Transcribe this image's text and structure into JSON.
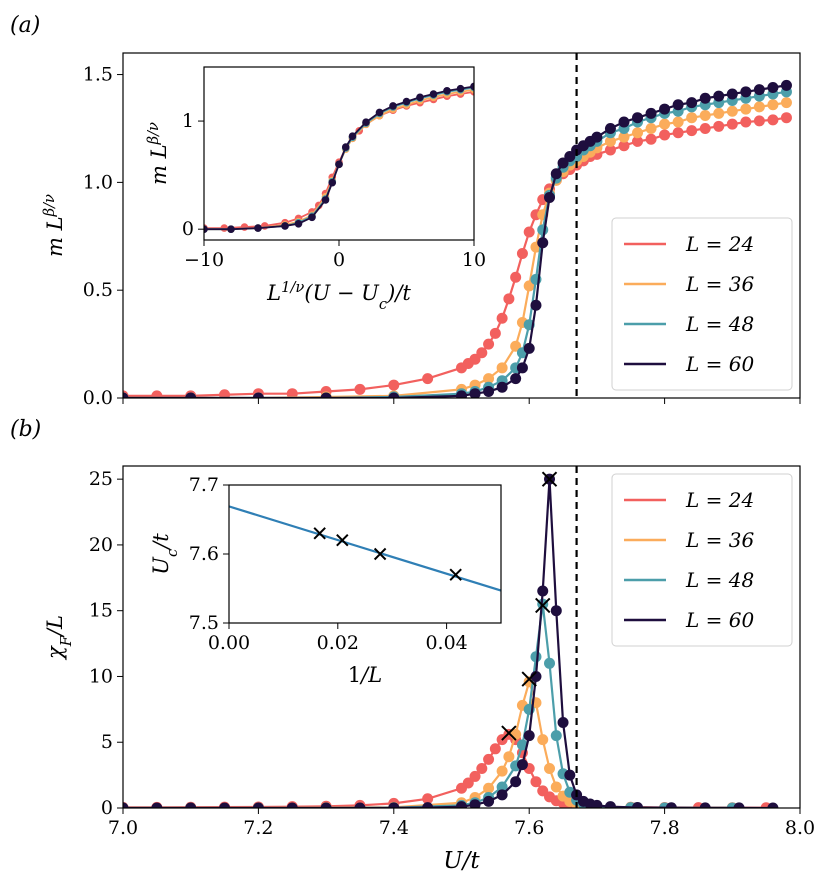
{
  "colors": {
    "L24": "#f2605e",
    "L36": "#fbac5b",
    "L48": "#4c9eaa",
    "L60": "#1e0e3e",
    "fit_line": "#2f7fb5",
    "critical_line": "#000000"
  },
  "chart_data": [
    {
      "id": "panel_a_main",
      "type": "line",
      "panel_label": "(a)",
      "xlabel": "",
      "ylabel": "m L^{β/ν}",
      "xlim": [
        7.0,
        8.0
      ],
      "ylim": [
        0.0,
        1.6
      ],
      "x_ticks": [
        7.0,
        7.2,
        7.4,
        7.6,
        7.8,
        8.0
      ],
      "y_ticks": [
        0.0,
        0.5,
        1.0,
        1.5
      ],
      "y_tick_labels": [
        "0.0",
        "0.5",
        "1.0",
        "1.5"
      ],
      "critical_x": 7.67,
      "legend_position": "lower-right",
      "series": [
        {
          "name": "L = 24",
          "color_key": "L24",
          "x": [
            7.0,
            7.05,
            7.1,
            7.15,
            7.2,
            7.25,
            7.3,
            7.35,
            7.4,
            7.45,
            7.5,
            7.51,
            7.52,
            7.53,
            7.54,
            7.55,
            7.56,
            7.57,
            7.58,
            7.59,
            7.6,
            7.61,
            7.62,
            7.63,
            7.64,
            7.65,
            7.66,
            7.67,
            7.68,
            7.69,
            7.7,
            7.72,
            7.74,
            7.76,
            7.78,
            7.8,
            7.82,
            7.84,
            7.86,
            7.88,
            7.9,
            7.92,
            7.94,
            7.96,
            7.98
          ],
          "y": [
            0.01,
            0.01,
            0.01,
            0.015,
            0.02,
            0.02,
            0.03,
            0.04,
            0.06,
            0.09,
            0.14,
            0.16,
            0.18,
            0.21,
            0.25,
            0.3,
            0.37,
            0.46,
            0.56,
            0.67,
            0.77,
            0.85,
            0.92,
            0.97,
            1.01,
            1.04,
            1.06,
            1.08,
            1.1,
            1.12,
            1.13,
            1.15,
            1.17,
            1.19,
            1.2,
            1.22,
            1.23,
            1.24,
            1.25,
            1.26,
            1.27,
            1.28,
            1.285,
            1.29,
            1.3
          ]
        },
        {
          "name": "L = 36",
          "color_key": "L36",
          "x": [
            7.0,
            7.1,
            7.2,
            7.3,
            7.4,
            7.5,
            7.52,
            7.54,
            7.56,
            7.58,
            7.59,
            7.6,
            7.61,
            7.62,
            7.63,
            7.64,
            7.65,
            7.66,
            7.67,
            7.68,
            7.69,
            7.7,
            7.72,
            7.74,
            7.76,
            7.78,
            7.8,
            7.82,
            7.84,
            7.86,
            7.88,
            7.9,
            7.92,
            7.94,
            7.96,
            7.98
          ],
          "y": [
            0.0,
            0.0,
            0.0,
            0.005,
            0.01,
            0.04,
            0.06,
            0.09,
            0.14,
            0.24,
            0.35,
            0.52,
            0.7,
            0.85,
            0.95,
            1.01,
            1.05,
            1.08,
            1.1,
            1.12,
            1.14,
            1.16,
            1.19,
            1.21,
            1.23,
            1.25,
            1.27,
            1.28,
            1.3,
            1.31,
            1.32,
            1.33,
            1.34,
            1.35,
            1.36,
            1.37
          ]
        },
        {
          "name": "L = 48",
          "color_key": "L48",
          "x": [
            7.0,
            7.1,
            7.2,
            7.3,
            7.4,
            7.5,
            7.52,
            7.54,
            7.56,
            7.58,
            7.59,
            7.6,
            7.61,
            7.62,
            7.63,
            7.64,
            7.65,
            7.66,
            7.67,
            7.68,
            7.69,
            7.7,
            7.72,
            7.74,
            7.76,
            7.78,
            7.8,
            7.82,
            7.84,
            7.86,
            7.88,
            7.9,
            7.92,
            7.94,
            7.96,
            7.98
          ],
          "y": [
            0.0,
            0.0,
            0.0,
            0.0,
            0.005,
            0.02,
            0.03,
            0.05,
            0.08,
            0.14,
            0.21,
            0.34,
            0.55,
            0.78,
            0.94,
            1.02,
            1.07,
            1.1,
            1.12,
            1.15,
            1.17,
            1.19,
            1.23,
            1.25,
            1.28,
            1.3,
            1.32,
            1.33,
            1.35,
            1.36,
            1.37,
            1.38,
            1.39,
            1.4,
            1.41,
            1.42
          ]
        },
        {
          "name": "L = 60",
          "color_key": "L60",
          "x": [
            7.0,
            7.1,
            7.2,
            7.3,
            7.4,
            7.5,
            7.52,
            7.54,
            7.56,
            7.58,
            7.59,
            7.6,
            7.61,
            7.62,
            7.63,
            7.64,
            7.65,
            7.66,
            7.67,
            7.68,
            7.69,
            7.7,
            7.72,
            7.74,
            7.76,
            7.78,
            7.8,
            7.82,
            7.84,
            7.86,
            7.88,
            7.9,
            7.92,
            7.94,
            7.96,
            7.98
          ],
          "y": [
            0.0,
            0.0,
            0.0,
            0.0,
            0.0,
            0.01,
            0.02,
            0.03,
            0.05,
            0.09,
            0.14,
            0.23,
            0.43,
            0.72,
            0.93,
            1.04,
            1.09,
            1.12,
            1.15,
            1.17,
            1.19,
            1.21,
            1.25,
            1.28,
            1.3,
            1.32,
            1.34,
            1.36,
            1.37,
            1.39,
            1.4,
            1.41,
            1.42,
            1.43,
            1.44,
            1.45
          ]
        }
      ]
    },
    {
      "id": "panel_a_inset",
      "type": "line",
      "xlabel": "L^{1/ν}(U − U_c)/t",
      "ylabel": "m L^{β/ν}",
      "xlim": [
        -10,
        10
      ],
      "ylim": [
        -0.1,
        1.5
      ],
      "x_ticks": [
        -10,
        0,
        10
      ],
      "x_tick_labels": [
        "−10",
        "0",
        "10"
      ],
      "y_ticks": [
        0,
        1
      ],
      "y_tick_labels": [
        "0",
        "1"
      ],
      "series": [
        {
          "name": "L = 24",
          "color_key": "L24",
          "x": [
            -10,
            -8.5,
            -7,
            -5.5,
            -4,
            -3,
            -2,
            -1.5,
            -1,
            -0.5,
            0,
            0.5,
            1,
            1.5,
            2,
            3,
            4,
            5,
            6,
            7,
            8,
            9,
            10
          ],
          "y": [
            0.01,
            0.01,
            0.02,
            0.03,
            0.06,
            0.1,
            0.16,
            0.22,
            0.33,
            0.48,
            0.62,
            0.75,
            0.84,
            0.91,
            0.97,
            1.05,
            1.1,
            1.14,
            1.17,
            1.2,
            1.23,
            1.25,
            1.27
          ]
        },
        {
          "name": "L = 36",
          "color_key": "L36",
          "x": [
            -10,
            -8,
            -6,
            -4,
            -3,
            -2,
            -1,
            -0.5,
            0,
            0.5,
            1,
            2,
            3,
            4,
            5,
            6,
            7,
            8,
            9,
            10
          ],
          "y": [
            0.0,
            0.0,
            0.01,
            0.04,
            0.07,
            0.13,
            0.3,
            0.45,
            0.6,
            0.74,
            0.84,
            0.97,
            1.05,
            1.11,
            1.15,
            1.19,
            1.22,
            1.25,
            1.27,
            1.29
          ]
        },
        {
          "name": "L = 48",
          "color_key": "L48",
          "x": [
            -10,
            -8,
            -6,
            -4,
            -3,
            -2,
            -1,
            -0.5,
            0,
            0.5,
            1,
            2,
            3,
            4,
            5,
            6,
            7,
            8,
            9,
            10
          ],
          "y": [
            0.0,
            0.0,
            0.01,
            0.03,
            0.06,
            0.12,
            0.28,
            0.44,
            0.6,
            0.75,
            0.85,
            0.98,
            1.07,
            1.13,
            1.17,
            1.21,
            1.24,
            1.27,
            1.29,
            1.31
          ]
        },
        {
          "name": "L = 60",
          "color_key": "L60",
          "x": [
            -10,
            -8,
            -6,
            -4,
            -3,
            -2,
            -1,
            -0.5,
            0,
            0.5,
            1,
            2,
            3,
            4,
            5,
            6,
            7,
            8,
            9,
            10
          ],
          "y": [
            0.0,
            0.0,
            0.01,
            0.03,
            0.05,
            0.11,
            0.27,
            0.43,
            0.6,
            0.76,
            0.86,
            0.99,
            1.08,
            1.14,
            1.18,
            1.22,
            1.25,
            1.28,
            1.3,
            1.32
          ]
        }
      ]
    },
    {
      "id": "panel_b_main",
      "type": "line",
      "panel_label": "(b)",
      "xlabel": "U/t",
      "ylabel": "χ_F/L",
      "xlim": [
        7.0,
        8.0
      ],
      "ylim": [
        0,
        26
      ],
      "x_ticks": [
        7.0,
        7.2,
        7.4,
        7.6,
        7.8,
        8.0
      ],
      "x_tick_labels": [
        "7.0",
        "7.2",
        "7.4",
        "7.6",
        "7.8",
        "8.0"
      ],
      "y_ticks": [
        0,
        5,
        10,
        15,
        20,
        25
      ],
      "y_tick_labels": [
        "0",
        "5",
        "10",
        "15",
        "20",
        "25"
      ],
      "critical_x": 7.67,
      "legend_position": "upper-right",
      "peak_markers": [
        {
          "x": 7.57,
          "y": 5.7
        },
        {
          "x": 7.6,
          "y": 9.8
        },
        {
          "x": 7.62,
          "y": 15.4
        },
        {
          "x": 7.63,
          "y": 25.0
        }
      ],
      "series": [
        {
          "name": "L = 24",
          "color_key": "L24",
          "x": [
            7.0,
            7.05,
            7.1,
            7.15,
            7.2,
            7.25,
            7.3,
            7.35,
            7.4,
            7.45,
            7.5,
            7.51,
            7.52,
            7.53,
            7.54,
            7.55,
            7.56,
            7.57,
            7.58,
            7.59,
            7.6,
            7.61,
            7.62,
            7.63,
            7.64,
            7.65,
            7.66,
            7.67,
            7.68,
            7.7,
            7.75,
            7.8,
            7.85,
            7.9,
            7.95
          ],
          "y": [
            0.05,
            0.05,
            0.06,
            0.07,
            0.08,
            0.1,
            0.13,
            0.2,
            0.35,
            0.7,
            1.5,
            1.9,
            2.4,
            3.0,
            3.7,
            4.5,
            5.2,
            5.6,
            5.2,
            4.2,
            3.0,
            2.0,
            1.3,
            0.85,
            0.55,
            0.38,
            0.27,
            0.2,
            0.15,
            0.1,
            0.06,
            0.04,
            0.03,
            0.02,
            0.02
          ]
        },
        {
          "name": "L = 36",
          "color_key": "L36",
          "x": [
            7.0,
            7.1,
            7.2,
            7.3,
            7.4,
            7.5,
            7.52,
            7.54,
            7.56,
            7.57,
            7.58,
            7.59,
            7.6,
            7.61,
            7.62,
            7.63,
            7.64,
            7.65,
            7.66,
            7.67,
            7.68,
            7.7,
            7.75,
            7.8,
            7.9
          ],
          "y": [
            0.0,
            0.0,
            0.0,
            0.02,
            0.05,
            0.4,
            0.8,
            1.5,
            2.8,
            3.9,
            5.6,
            7.8,
            9.6,
            8.0,
            5.2,
            3.0,
            1.6,
            0.9,
            0.5,
            0.3,
            0.2,
            0.1,
            0.05,
            0.02,
            0.01
          ]
        },
        {
          "name": "L = 48",
          "color_key": "L48",
          "x": [
            7.0,
            7.1,
            7.2,
            7.3,
            7.4,
            7.5,
            7.52,
            7.54,
            7.56,
            7.58,
            7.59,
            7.6,
            7.61,
            7.62,
            7.63,
            7.64,
            7.65,
            7.66,
            7.67,
            7.68,
            7.7,
            7.75,
            7.8,
            7.9
          ],
          "y": [
            0.0,
            0.0,
            0.0,
            0.0,
            0.02,
            0.2,
            0.4,
            0.8,
            1.6,
            3.2,
            4.8,
            7.5,
            11.5,
            15.5,
            11.0,
            5.5,
            2.6,
            1.2,
            0.6,
            0.3,
            0.1,
            0.03,
            0.01,
            0.0
          ]
        },
        {
          "name": "L = 60",
          "color_key": "L60",
          "x": [
            7.0,
            7.05,
            7.1,
            7.15,
            7.2,
            7.25,
            7.3,
            7.35,
            7.4,
            7.45,
            7.5,
            7.52,
            7.54,
            7.56,
            7.58,
            7.59,
            7.6,
            7.61,
            7.62,
            7.63,
            7.64,
            7.65,
            7.66,
            7.67,
            7.68,
            7.69,
            7.7,
            7.72,
            7.76,
            7.81,
            7.86,
            7.91,
            7.96
          ],
          "y": [
            0.0,
            0.0,
            0.0,
            0.0,
            0.0,
            0.0,
            0.0,
            0.0,
            0.01,
            0.03,
            0.1,
            0.25,
            0.5,
            1.0,
            2.0,
            3.3,
            5.5,
            10.0,
            16.5,
            25.0,
            15.0,
            6.5,
            2.5,
            1.0,
            0.5,
            0.3,
            0.2,
            0.1,
            0.04,
            0.02,
            0.01,
            0.01,
            0.0
          ]
        }
      ]
    },
    {
      "id": "panel_b_inset",
      "type": "scatter",
      "xlabel": "1/L",
      "ylabel": "U_c/t",
      "xlim": [
        0.0,
        0.05
      ],
      "ylim": [
        7.5,
        7.7
      ],
      "x_ticks": [
        0.0,
        0.02,
        0.04
      ],
      "x_tick_labels": [
        "0.00",
        "0.02",
        "0.04"
      ],
      "y_ticks": [
        7.5,
        7.6,
        7.7
      ],
      "y_tick_labels": [
        "7.5",
        "7.6",
        "7.7"
      ],
      "points": {
        "x": [
          0.01667,
          0.02083,
          0.02778,
          0.04167
        ],
        "y": [
          7.63,
          7.62,
          7.6,
          7.57
        ]
      },
      "fit_line": {
        "x": [
          0.0,
          0.05
        ],
        "y": [
          7.669,
          7.547
        ]
      }
    }
  ],
  "legend_labels": [
    "L = 24",
    "L = 36",
    "L = 48",
    "L = 60"
  ]
}
